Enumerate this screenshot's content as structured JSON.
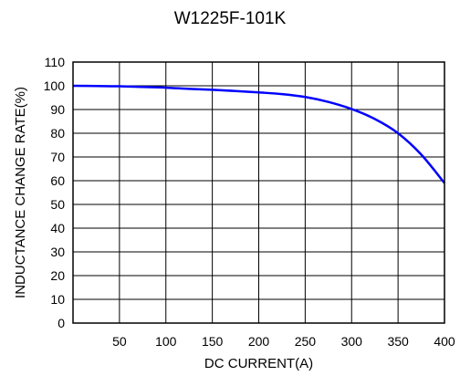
{
  "chart_data": {
    "type": "line",
    "title": "W1225F-101K",
    "xlabel": "DC CURRENT(A)",
    "ylabel": "INDUCTANCE CHANGE RATE(%)",
    "xlim": [
      0,
      400
    ],
    "ylim": [
      0,
      110
    ],
    "x_ticks": [
      50,
      100,
      150,
      200,
      250,
      300,
      350,
      400
    ],
    "y_ticks": [
      0,
      10,
      20,
      30,
      40,
      50,
      60,
      70,
      80,
      90,
      100,
      110
    ],
    "grid": true,
    "line_color": "#0000ff",
    "series": [
      {
        "x": [
          0,
          25,
          50,
          75,
          100,
          125,
          150,
          175,
          200,
          225,
          250,
          275,
          300,
          325,
          350,
          375,
          400
        ],
        "values": [
          100,
          99.9,
          99.8,
          99.5,
          99.2,
          98.7,
          98.3,
          97.8,
          97.2,
          96.5,
          95.3,
          93.2,
          90.2,
          86.0,
          80.0,
          71.0,
          59.0
        ]
      }
    ]
  }
}
